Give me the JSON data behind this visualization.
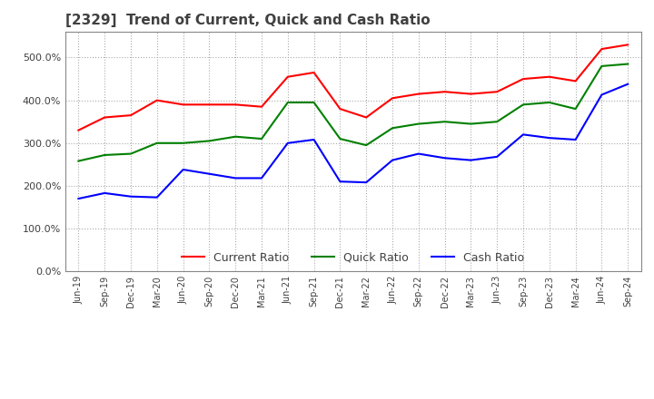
{
  "title": "[2329]  Trend of Current, Quick and Cash Ratio",
  "title_color": "#404040",
  "background_color": "#ffffff",
  "grid_color": "#aaaaaa",
  "ylim": [
    0,
    560
  ],
  "yticks": [
    0,
    100,
    200,
    300,
    400,
    500
  ],
  "x_labels": [
    "Jun-19",
    "Sep-19",
    "Dec-19",
    "Mar-20",
    "Jun-20",
    "Sep-20",
    "Dec-20",
    "Mar-21",
    "Jun-21",
    "Sep-21",
    "Dec-21",
    "Mar-22",
    "Jun-22",
    "Sep-22",
    "Dec-22",
    "Mar-23",
    "Jun-23",
    "Sep-23",
    "Dec-23",
    "Mar-24",
    "Jun-24",
    "Sep-24"
  ],
  "current_ratio": [
    330,
    360,
    365,
    400,
    390,
    390,
    390,
    385,
    455,
    465,
    380,
    360,
    405,
    415,
    420,
    415,
    420,
    450,
    455,
    445,
    520,
    530
  ],
  "quick_ratio": [
    258,
    272,
    275,
    300,
    300,
    305,
    315,
    310,
    395,
    395,
    310,
    295,
    335,
    345,
    350,
    345,
    350,
    390,
    395,
    380,
    480,
    485
  ],
  "cash_ratio": [
    170,
    183,
    175,
    173,
    238,
    228,
    218,
    218,
    300,
    308,
    210,
    208,
    260,
    275,
    265,
    260,
    268,
    320,
    312,
    308,
    413,
    438
  ],
  "current_color": "#ff0000",
  "quick_color": "#008000",
  "cash_color": "#0000ff",
  "legend_labels": [
    "Current Ratio",
    "Quick Ratio",
    "Cash Ratio"
  ]
}
